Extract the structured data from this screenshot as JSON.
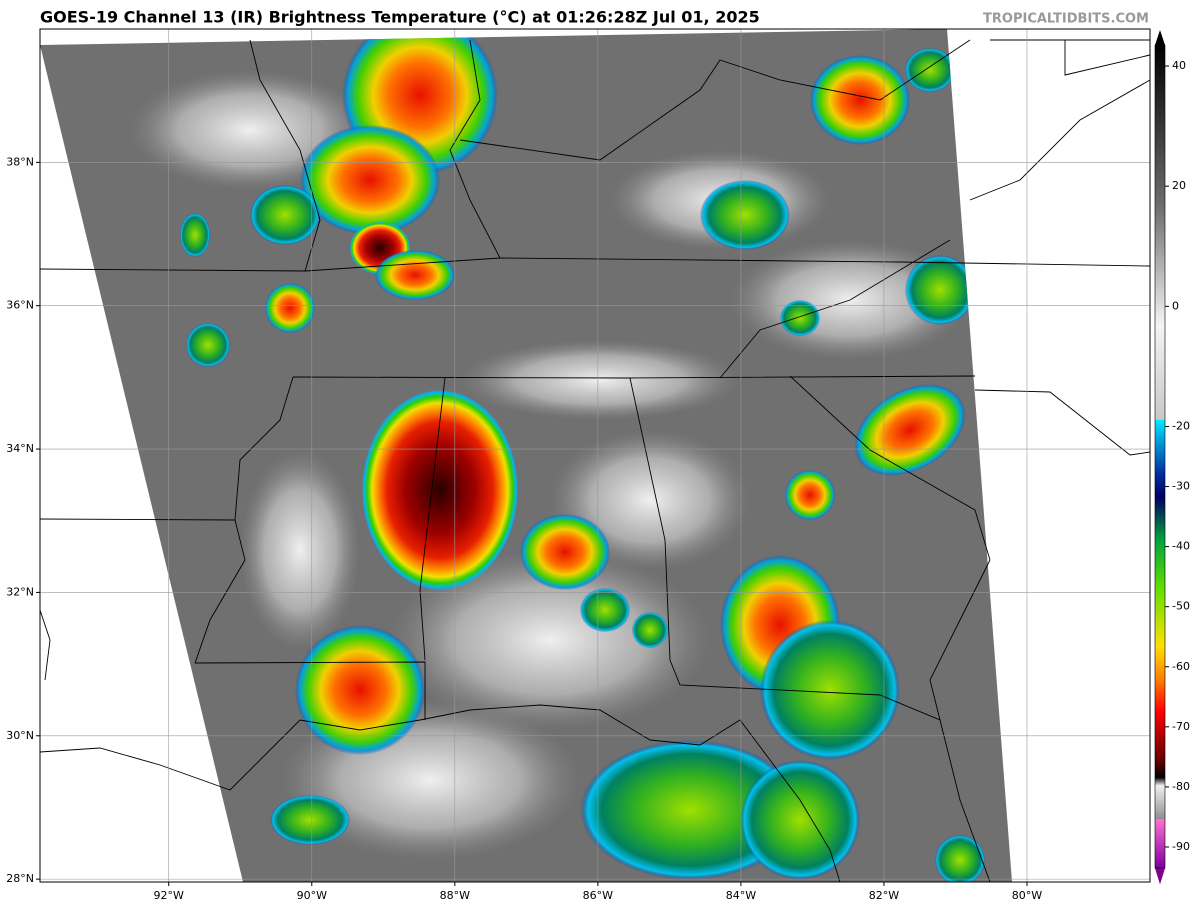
{
  "header": {
    "title": "GOES-19 Channel 13 (IR) Brightness Temperature (°C) at 01:26:28Z Jul 01, 2025",
    "source": "TROPICALTIDBITS.COM"
  },
  "map": {
    "lon_lim": [
      -93.8,
      -78.28
    ],
    "lat_lim": [
      27.96,
      39.86
    ],
    "lon_ticks": [
      {
        "value": -92,
        "label": "92°W"
      },
      {
        "value": -90,
        "label": "90°W"
      },
      {
        "value": -88,
        "label": "88°W"
      },
      {
        "value": -86,
        "label": "86°W"
      },
      {
        "value": -84,
        "label": "84°W"
      },
      {
        "value": -82,
        "label": "82°W"
      },
      {
        "value": -80,
        "label": "80°W"
      }
    ],
    "lat_ticks": [
      {
        "value": 38,
        "label": "38°N"
      },
      {
        "value": 36,
        "label": "36°N"
      },
      {
        "value": 34,
        "label": "34°N"
      },
      {
        "value": 32,
        "label": "32°N"
      },
      {
        "value": 30,
        "label": "30°N"
      },
      {
        "value": 28,
        "label": "28°N"
      }
    ]
  },
  "colorbar": {
    "lim": [
      -93.5,
      43.5
    ],
    "ticks": [
      40,
      20,
      0,
      -20,
      -30,
      -40,
      -50,
      -60,
      -70,
      -80,
      -90
    ]
  }
}
